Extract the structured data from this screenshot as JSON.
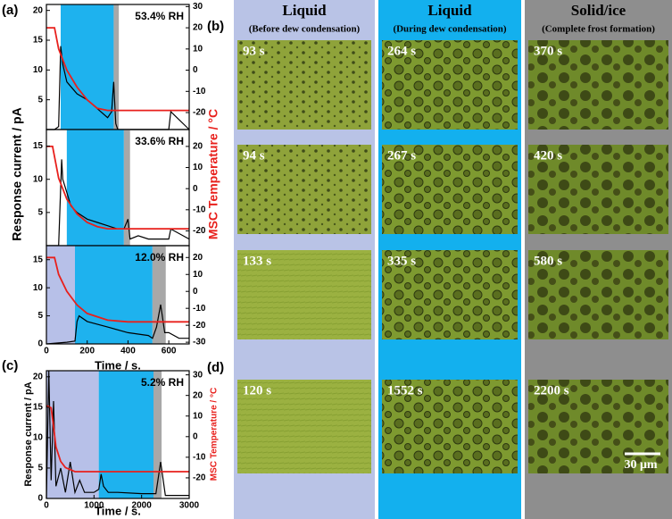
{
  "chart_data": [
    {
      "type": "line",
      "annotation": "53.4% RH",
      "xlim": [
        0,
        700
      ],
      "ylim": [
        0,
        21
      ],
      "yticks": [
        5,
        10,
        15,
        20
      ],
      "y2lim": [
        -28,
        31
      ],
      "y2ticks": [
        -20,
        -10,
        0,
        10,
        20,
        30
      ],
      "ylabel": "Response current / pA",
      "y2label": "MSC Temperature / °C",
      "regions": [
        {
          "start": 70,
          "end": 330,
          "color": "#1eb2ee"
        },
        {
          "start": 330,
          "end": 355,
          "color": "#a8a8a8"
        }
      ],
      "series": [
        {
          "color": "#000000",
          "x": [
            0,
            40,
            60,
            70,
            80,
            100,
            150,
            200,
            250,
            300,
            320,
            330,
            340,
            350,
            400,
            500,
            600,
            610,
            700
          ],
          "values": [
            0,
            0,
            0.5,
            14,
            11,
            8,
            6,
            5,
            3.5,
            2,
            3,
            8,
            1,
            0,
            0,
            0,
            0,
            3,
            0
          ]
        },
        {
          "color": "#e8201c",
          "axis": "y2",
          "x": [
            0,
            40,
            60,
            100,
            150,
            200,
            250,
            300,
            700
          ],
          "values": [
            20,
            20,
            10,
            0,
            -8,
            -14,
            -18,
            -19,
            -19
          ]
        }
      ]
    },
    {
      "type": "line",
      "annotation": "33.6% RH",
      "xlim": [
        0,
        700
      ],
      "ylim": [
        0,
        17.5
      ],
      "yticks": [
        5,
        10,
        15
      ],
      "y2lim": [
        -27,
        28
      ],
      "y2ticks": [
        -20,
        -10,
        0,
        10,
        20
      ],
      "regions": [
        {
          "start": 100,
          "end": 380,
          "color": "#1eb2ee"
        },
        {
          "start": 380,
          "end": 410,
          "color": "#a8a8a8"
        }
      ],
      "series": [
        {
          "color": "#000000",
          "x": [
            0,
            40,
            60,
            75,
            80,
            90,
            100,
            120,
            150,
            200,
            250,
            300,
            350,
            380,
            400,
            410,
            450,
            500,
            600,
            610,
            700
          ],
          "values": [
            0,
            0,
            0,
            13,
            10,
            9,
            8,
            6,
            5,
            4,
            3.5,
            3,
            2.5,
            2.5,
            4,
            1,
            1.5,
            1,
            1,
            2.5,
            1
          ]
        },
        {
          "color": "#e8201c",
          "axis": "y2",
          "x": [
            0,
            30,
            60,
            100,
            150,
            200,
            250,
            300,
            700
          ],
          "values": [
            20,
            20,
            5,
            -5,
            -12,
            -16,
            -18,
            -19,
            -19
          ]
        }
      ]
    },
    {
      "type": "line",
      "annotation": "12.0% RH",
      "xlim": [
        0,
        700
      ],
      "xticks": [
        0,
        200,
        400,
        600
      ],
      "xlabel": "Time / s.",
      "ylim": [
        0,
        17.5
      ],
      "yticks": [
        0,
        5,
        10,
        15
      ],
      "y2lim": [
        -31,
        27
      ],
      "y2ticks": [
        -30,
        -20,
        -10,
        0,
        10,
        20
      ],
      "regions": [
        {
          "start": 0,
          "end": 140,
          "color": "#b7c0e8"
        },
        {
          "start": 140,
          "end": 520,
          "color": "#1eb2ee"
        },
        {
          "start": 520,
          "end": 585,
          "color": "#a8a8a8"
        }
      ],
      "series": [
        {
          "color": "#000000",
          "x": [
            0,
            100,
            140,
            150,
            160,
            200,
            300,
            400,
            500,
            520,
            540,
            560,
            580,
            600,
            650,
            700
          ],
          "values": [
            0,
            0.3,
            0.5,
            4,
            5,
            4,
            3,
            2,
            1.5,
            1,
            3,
            7,
            2,
            2,
            1,
            1
          ]
        },
        {
          "color": "#e8201c",
          "axis": "y2",
          "x": [
            0,
            40,
            60,
            100,
            150,
            200,
            300,
            400,
            700
          ],
          "values": [
            20,
            20,
            10,
            0,
            -8,
            -13,
            -17,
            -18,
            -18
          ]
        }
      ]
    },
    {
      "type": "line",
      "annotation": "5.2% RH",
      "xlim": [
        0,
        3000
      ],
      "xticks": [
        0,
        1000,
        2000,
        3000
      ],
      "xlabel": "Time / s.",
      "ylim": [
        0,
        21
      ],
      "yticks": [
        0,
        5,
        10,
        15,
        20
      ],
      "y2lim": [
        -30,
        32
      ],
      "y2ticks": [
        -20,
        -10,
        0,
        10,
        20,
        30
      ],
      "ylabel": "Response current / pA",
      "y2label": "MSC Temperature / °C",
      "regions": [
        {
          "start": 0,
          "end": 1100,
          "color": "#b7c0e8"
        },
        {
          "start": 1100,
          "end": 2250,
          "color": "#1eb2ee"
        },
        {
          "start": 2250,
          "end": 2420,
          "color": "#a8a8a8"
        }
      ],
      "series": [
        {
          "color": "#000000",
          "x": [
            0,
            50,
            100,
            150,
            200,
            300,
            400,
            500,
            600,
            700,
            800,
            1000,
            1100,
            1150,
            1200,
            1300,
            1500,
            2000,
            2300,
            2400,
            2500,
            3000
          ],
          "values": [
            0,
            21,
            3,
            16,
            2,
            5,
            1,
            6,
            1,
            3,
            1,
            1,
            1.5,
            4,
            2,
            1,
            1,
            0.8,
            0.8,
            6,
            0.5,
            0.5
          ]
        },
        {
          "color": "#e8201c",
          "axis": "y2",
          "x": [
            0,
            100,
            150,
            200,
            300,
            400,
            600,
            3000
          ],
          "values": [
            15,
            14,
            5,
            -5,
            -12,
            -15,
            -17,
            -17
          ]
        }
      ]
    }
  ],
  "panel_labels": [
    "(a)",
    "(b)",
    "(c)",
    "(d)"
  ],
  "micrographs": {
    "columns": [
      {
        "title": "Liquid",
        "subtitle": "(Before dew condensation)",
        "color": "#b9c3e6",
        "cells": [
          "93 s",
          "94 s",
          "133 s",
          "120 s"
        ]
      },
      {
        "title": "Liquid",
        "subtitle": "(During dew condensation)",
        "color": "#13b0ee",
        "cells": [
          "264 s",
          "267 s",
          "335 s",
          "1552 s"
        ]
      },
      {
        "title": "Solid/ice",
        "subtitle": "(Complete frost formation)",
        "color": "#8e8e8e",
        "cells": [
          "370 s",
          "420 s",
          "580 s",
          "2200 s"
        ]
      }
    ],
    "scale_bar": "30 μm"
  }
}
